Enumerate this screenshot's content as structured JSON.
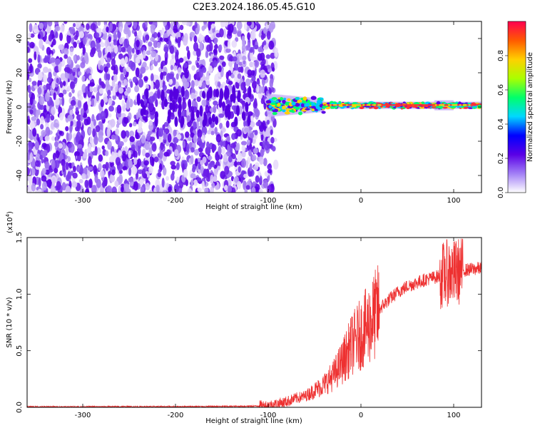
{
  "title": "C2E3.2024.186.05.45.G10",
  "chart_data": [
    {
      "type": "heatmap",
      "xlabel": "Height of straight line (km)",
      "ylabel": "Frequency (Hz)",
      "xlim": [
        -360,
        130
      ],
      "ylim": [
        -50,
        50
      ],
      "xticks": [
        -300,
        -200,
        -100,
        0,
        100
      ],
      "yticks": [
        -40,
        -20,
        0,
        20,
        40
      ],
      "colorbar": {
        "label": "Normalized spectral amplitude",
        "range": [
          0,
          1
        ],
        "ticks": [
          "0.0",
          "0.2",
          "0.4",
          "0.6",
          "0.8"
        ],
        "colors": [
          "#ffffff",
          "#a27ff6",
          "#5a00e6",
          "#0000ff",
          "#00d8ff",
          "#00ff6a",
          "#aaff00",
          "#ffd000",
          "#ff5a00",
          "#ff0050"
        ]
      },
      "features": {
        "noise_region_x": [
          -360,
          -95
        ],
        "signal_line_freq_hz": 1,
        "signal_start_x": -100
      }
    },
    {
      "type": "line",
      "xlabel": "Height of straight line (km)",
      "ylabel": "SNR (10 * v/v)",
      "y_multiplier": "(x10",
      "y_multiplier_exp": "4",
      "y_multiplier_close": ")",
      "xlim": [
        -360,
        130
      ],
      "ylim": [
        0,
        15000
      ],
      "xticks": [
        -300,
        -200,
        -100,
        0,
        100
      ],
      "yticks": [
        "0.0",
        "0.5",
        "1.0",
        "1.5"
      ],
      "color": "#ee3030",
      "series": [
        {
          "x": [
            -360,
            -300,
            -250,
            -200,
            -150,
            -120,
            -100,
            -90,
            -80,
            -70,
            -60,
            -50,
            -40,
            -30,
            -20,
            -10,
            0,
            10,
            20,
            30,
            40,
            50,
            60,
            70,
            80,
            90,
            95,
            100,
            105,
            110,
            120,
            130
          ],
          "y": [
            50,
            50,
            60,
            60,
            80,
            100,
            150,
            300,
            500,
            800,
            1000,
            1500,
            2000,
            2800,
            4000,
            5500,
            6500,
            7500,
            8700,
            9500,
            10200,
            10700,
            11000,
            11300,
            11500,
            11700,
            12000,
            11800,
            12000,
            12100,
            12200,
            12300
          ]
        }
      ]
    }
  ]
}
